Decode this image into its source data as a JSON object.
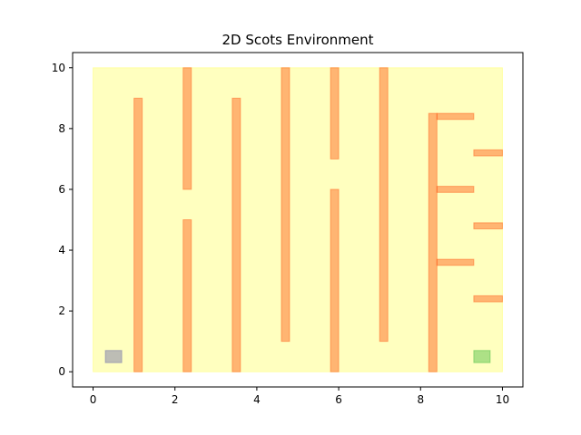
{
  "chart_data": {
    "type": "area",
    "title": "2D Scots Environment",
    "xlabel": "",
    "ylabel": "",
    "xlim": [
      -0.5,
      10.5
    ],
    "ylim": [
      -0.5,
      10.5
    ],
    "xticks": [
      0,
      2,
      4,
      6,
      8,
      10
    ],
    "yticks": [
      0,
      2,
      4,
      6,
      8,
      10
    ],
    "grid": false,
    "colors": {
      "workspace": "#ffff00",
      "obstacle": "#ff4500",
      "initial": "#5a5aa8",
      "target": "#32b432"
    },
    "workspace": {
      "x": [
        0,
        10
      ],
      "y": [
        0,
        10
      ]
    },
    "initial_set": {
      "x": [
        0.3,
        0.7
      ],
      "y": [
        0.3,
        0.7
      ]
    },
    "target_set": {
      "x": [
        9.3,
        9.7
      ],
      "y": [
        0.3,
        0.7
      ]
    },
    "obstacles": [
      {
        "x": [
          1.0,
          1.2
        ],
        "y": [
          0.0,
          9.0
        ]
      },
      {
        "x": [
          2.2,
          2.4
        ],
        "y": [
          0.0,
          5.0
        ]
      },
      {
        "x": [
          2.2,
          2.4
        ],
        "y": [
          6.0,
          10.0
        ]
      },
      {
        "x": [
          3.4,
          3.6
        ],
        "y": [
          0.0,
          9.0
        ]
      },
      {
        "x": [
          4.6,
          4.8
        ],
        "y": [
          1.0,
          10.0
        ]
      },
      {
        "x": [
          5.8,
          6.0
        ],
        "y": [
          0.0,
          6.0
        ]
      },
      {
        "x": [
          5.8,
          6.0
        ],
        "y": [
          7.0,
          10.0
        ]
      },
      {
        "x": [
          7.0,
          7.2
        ],
        "y": [
          1.0,
          10.0
        ]
      },
      {
        "x": [
          8.2,
          8.4
        ],
        "y": [
          0.0,
          8.5
        ]
      },
      {
        "x": [
          8.4,
          9.3
        ],
        "y": [
          8.3,
          8.5
        ]
      },
      {
        "x": [
          8.4,
          9.3
        ],
        "y": [
          5.9,
          6.1
        ]
      },
      {
        "x": [
          8.4,
          9.3
        ],
        "y": [
          3.5,
          3.7
        ]
      },
      {
        "x": [
          9.3,
          10.0
        ],
        "y": [
          7.1,
          7.3
        ]
      },
      {
        "x": [
          9.3,
          10.0
        ],
        "y": [
          4.7,
          4.9
        ]
      },
      {
        "x": [
          9.3,
          10.0
        ],
        "y": [
          2.3,
          2.5
        ]
      }
    ]
  }
}
